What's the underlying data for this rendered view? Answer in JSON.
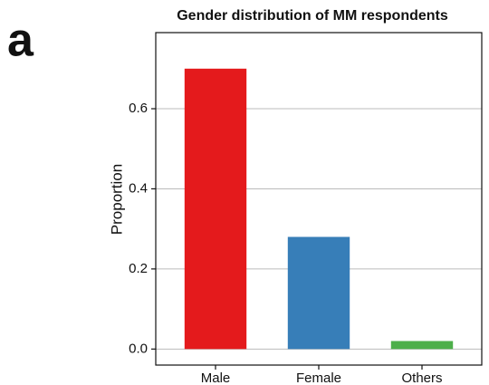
{
  "chart_data": {
    "type": "bar",
    "panel_label": "a",
    "title": "Gender distribution of MM respondents",
    "y_label": "Proportion",
    "categories": [
      "Male",
      "Female",
      "Others"
    ],
    "values": [
      0.7,
      0.28,
      0.02
    ],
    "colors": [
      "#e41a1c",
      "#377eb8",
      "#4daf4a"
    ],
    "ylim": [
      -0.04,
      0.79
    ],
    "yticks": [
      {
        "value": 0,
        "label": "0.0"
      },
      0.2,
      0.4,
      0.6
    ],
    "grid": true
  }
}
